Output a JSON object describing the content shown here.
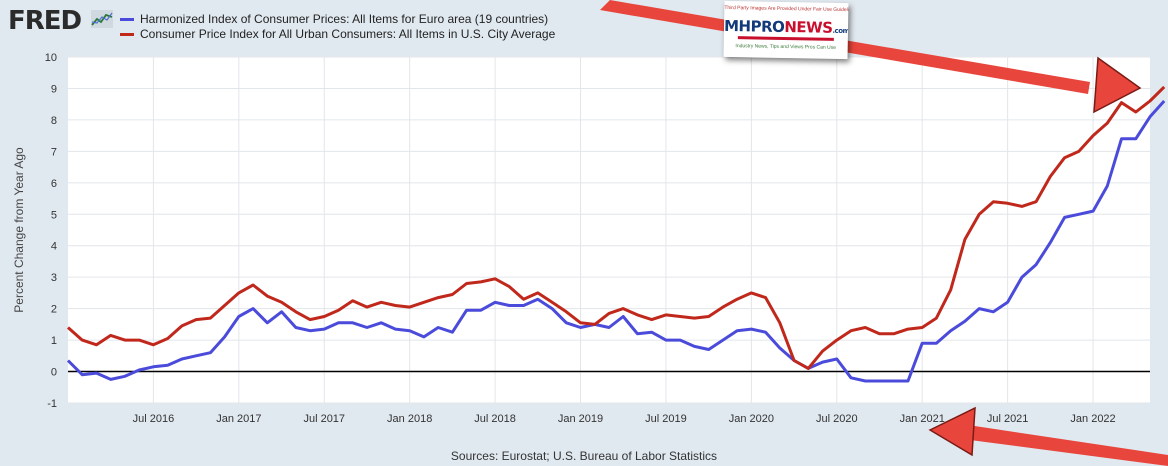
{
  "branding": {
    "logo_text": "FRED",
    "logo_icon": "trend-line-icon"
  },
  "legend": [
    {
      "label": "Harmonized Index of Consumer Prices: All Items for Euro area (19 countries)",
      "color": "#4b4bdb"
    },
    {
      "label": "Consumer Price Index for All Urban Consumers: All Items in U.S. City Average",
      "color": "#c0281c"
    }
  ],
  "watermark": {
    "top_text": "Third Party Images Are Provided Under Fair Use Guidelines",
    "brand_a": "MHPRO",
    "brand_b": "NEWS",
    "brand_c": ".com",
    "tagline": "Industry News, Tips and Views Pros Can Use"
  },
  "source": "Sources: Eurostat; U.S. Bureau of Labor Statistics",
  "chart_data": {
    "type": "line",
    "ylabel": "Percent Change from Year Ago",
    "ylim": [
      -1,
      10
    ],
    "yticks": [
      -1,
      0,
      1,
      2,
      3,
      4,
      5,
      6,
      7,
      8,
      9,
      10
    ],
    "x_start": "Jan 2016",
    "x_end": "May 2022",
    "xticks": [
      "Jul 2016",
      "Jan 2017",
      "Jul 2017",
      "Jan 2018",
      "Jul 2018",
      "Jan 2019",
      "Jul 2019",
      "Jan 2020",
      "Jul 2020",
      "Jan 2021",
      "Jul 2021",
      "Jan 2022"
    ],
    "grid": true,
    "series": [
      {
        "name": "Harmonized Index of Consumer Prices: All Items for Euro area (19 countries)",
        "color": "#4b4bdb",
        "values": [
          0.35,
          -0.1,
          -0.05,
          -0.25,
          -0.15,
          0.05,
          0.15,
          0.2,
          0.4,
          0.5,
          0.6,
          1.1,
          1.75,
          2.0,
          1.55,
          1.9,
          1.4,
          1.3,
          1.35,
          1.55,
          1.55,
          1.4,
          1.55,
          1.35,
          1.3,
          1.1,
          1.4,
          1.25,
          1.95,
          1.95,
          2.2,
          2.1,
          2.1,
          2.3,
          2.0,
          1.55,
          1.4,
          1.5,
          1.4,
          1.75,
          1.2,
          1.25,
          1.0,
          1.0,
          0.8,
          0.7,
          1.0,
          1.3,
          1.35,
          1.25,
          0.75,
          0.35,
          0.1,
          0.3,
          0.4,
          -0.2,
          -0.3,
          -0.3,
          -0.3,
          -0.3,
          0.9,
          0.9,
          1.3,
          1.6,
          2.0,
          1.9,
          2.2,
          3.0,
          3.4,
          4.1,
          4.9,
          5.0,
          5.1,
          5.9,
          7.4,
          7.4,
          8.1,
          8.6
        ],
        "anchor": "Jan 2016"
      },
      {
        "name": "Consumer Price Index for All Urban Consumers: All Items in U.S. City Average",
        "color": "#c0281c",
        "values": [
          1.4,
          1.0,
          0.85,
          1.15,
          1.0,
          1.0,
          0.85,
          1.05,
          1.45,
          1.65,
          1.7,
          2.1,
          2.5,
          2.75,
          2.4,
          2.2,
          1.9,
          1.65,
          1.75,
          1.95,
          2.25,
          2.05,
          2.2,
          2.1,
          2.05,
          2.2,
          2.35,
          2.45,
          2.8,
          2.85,
          2.95,
          2.7,
          2.3,
          2.5,
          2.2,
          1.9,
          1.55,
          1.5,
          1.85,
          2.0,
          1.8,
          1.65,
          1.8,
          1.75,
          1.7,
          1.75,
          2.05,
          2.3,
          2.5,
          2.35,
          1.55,
          0.35,
          0.1,
          0.65,
          1.0,
          1.3,
          1.4,
          1.2,
          1.2,
          1.35,
          1.4,
          1.7,
          2.6,
          4.2,
          5.0,
          5.4,
          5.35,
          5.25,
          5.4,
          6.2,
          6.8,
          7.0,
          7.5,
          7.9,
          8.55,
          8.25,
          8.6,
          9.05
        ],
        "anchor": "Jan 2016"
      }
    ]
  }
}
